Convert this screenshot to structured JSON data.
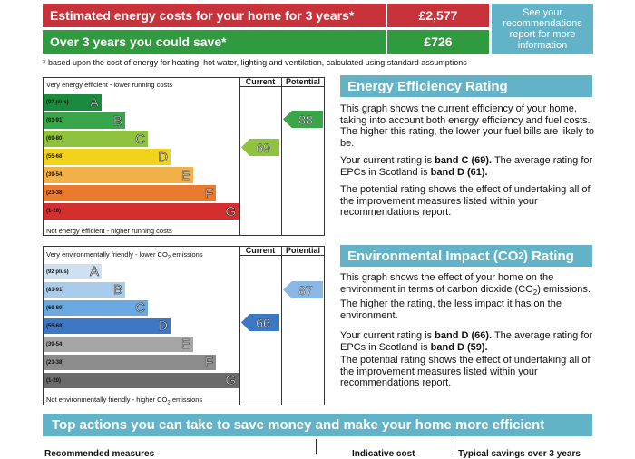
{
  "costs": {
    "estimated_label": "Estimated energy costs for your home for 3 years*",
    "estimated_value": "£2,577",
    "save_label": "Over 3 years you could save*",
    "save_value": "£726",
    "see_link": "See your recommendations report for more information",
    "footnote": "* based upon the cost of energy for heating, hot water, lighting and ventilation, calculated using standard assumptions",
    "colors": {
      "estimated": "#c8323a",
      "save": "#2f9a3e",
      "link_box": "#62b3c7"
    }
  },
  "energy_chart": {
    "top_caption": "Very energy efficient - lower running costs",
    "bottom_caption": "Not energy efficient - higher running costs",
    "col_current": "Current",
    "col_potential": "Potential",
    "bands": [
      {
        "range": "(92 plus)",
        "letter": "A",
        "color": "#1a8a3c"
      },
      {
        "range": "(81-91)",
        "letter": "B",
        "color": "#3aa64a"
      },
      {
        "range": "(69-80)",
        "letter": "C",
        "color": "#8fc33f"
      },
      {
        "range": "(55-68)",
        "letter": "D",
        "color": "#f2d31c"
      },
      {
        "range": "(39-54",
        "letter": "E",
        "color": "#f2b04a"
      },
      {
        "range": "(21-38)",
        "letter": "F",
        "color": "#ea7a2d"
      },
      {
        "range": "(1-20)",
        "letter": "G",
        "color": "#d42e2e"
      }
    ],
    "current": {
      "value": "69",
      "band": "C",
      "color": "#8fc33f"
    },
    "potential": {
      "value": "88",
      "band": "B",
      "color": "#3aa64a"
    }
  },
  "energy_text": {
    "heading": "Energy Efficiency Rating",
    "p1": "This graph shows the current efficiency of your home, taking into account both energy efficiency and fuel costs. The higher this rating, the lower your fuel bills are likely to be.",
    "p2_a": "Your current rating is ",
    "p2_b": "band C (69).",
    "p2_c": " The average rating for EPCs in Scotland is ",
    "p2_d": "band D (61).",
    "p3": "The potential rating shows the effect of undertaking all of the improvement measures listed within your recommendations report."
  },
  "env_chart": {
    "top_caption_a": "Very environmentally friendly - lower CO",
    "top_caption_sub": "2",
    "top_caption_b": " emissions",
    "bottom_caption_a": "Not environmentally friendly - higher CO",
    "bottom_caption_sub": "2",
    "bottom_caption_b": " emissions",
    "col_current": "Current",
    "col_potential": "Potential",
    "bands": [
      {
        "range": "(92 plus)",
        "letter": "A",
        "color": "#cfe0f2"
      },
      {
        "range": "(81-91)",
        "letter": "B",
        "color": "#a9cbec"
      },
      {
        "range": "(69-80)",
        "letter": "C",
        "color": "#6aaae0"
      },
      {
        "range": "(55-68)",
        "letter": "D",
        "color": "#3d78c4"
      },
      {
        "range": "(39-54",
        "letter": "E",
        "color": "#a6a6a6"
      },
      {
        "range": "(21-38)",
        "letter": "F",
        "color": "#8c8c8c"
      },
      {
        "range": "(1-20)",
        "letter": "G",
        "color": "#6b6b6b"
      }
    ],
    "current": {
      "value": "66",
      "band": "D",
      "color": "#3d78c4"
    },
    "potential": {
      "value": "87",
      "band": "B",
      "color": "#8ab8e6"
    }
  },
  "env_text": {
    "heading_a": "Environmental Impact (CO",
    "heading_sub": "2",
    "heading_b": ") Rating",
    "p1_a": "This graph shows the effect of your home on the environment in terms of carbon dioxide (CO",
    "p1_sub": "2",
    "p1_b": ") emissions. The higher the rating, the less impact it has on the environment.",
    "p2_a": "Your current rating is ",
    "p2_b": "band D (66).",
    "p2_c": " The average rating for EPCs in Scotland is ",
    "p2_d": "band D (59).",
    "p3": "The potential rating shows the effect of undertaking all of the improvement measures listed within your recommendations report."
  },
  "actions": {
    "heading": "Top actions you can take to save money and make your home more efficient",
    "col1": "Recommended measures",
    "col2": "Indicative cost",
    "col3": "Typical savings over 3 years"
  }
}
